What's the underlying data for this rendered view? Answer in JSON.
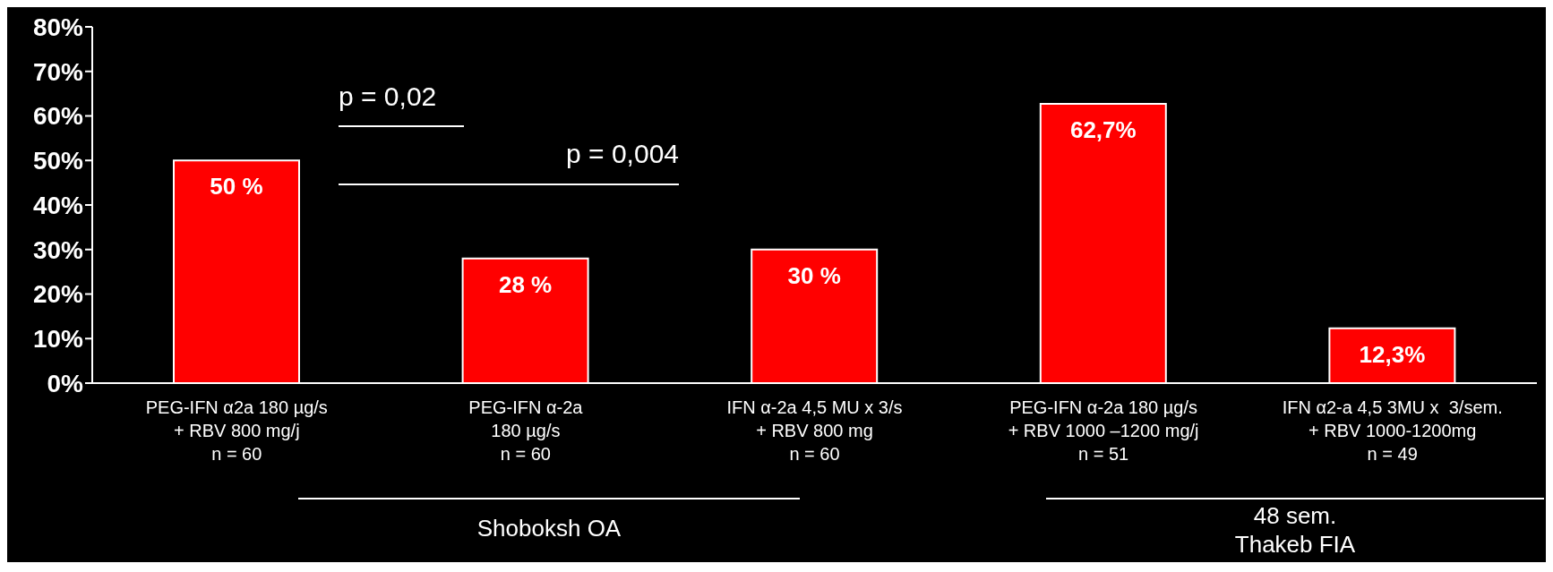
{
  "chart_data": {
    "type": "bar",
    "categories": [
      "PEG-IFN α2a 180 µg/s\n+ RBV 800 mg/j\nn = 60",
      "PEG-IFN α-2a\n180 µg/s\nn = 60",
      "IFN α-2a 4,5 MU x 3/s\n+ RBV 800 mg\nn = 60",
      "PEG-IFN α-2a 180 µg/s\n+ RBV 1000 –1200 mg/j\nn = 51",
      "IFN α2-a 4,5 3MU x  3/sem.\n+ RBV 1000-1200mg\nn = 49"
    ],
    "values": [
      50,
      28,
      30,
      62.7,
      12.3
    ],
    "value_labels": [
      "50 %",
      "28 %",
      "30 %",
      "62,7%",
      "12,3%"
    ],
    "color": "#ff0000",
    "ylim": [
      0,
      80
    ],
    "yticks": [
      {
        "value": 0,
        "label": "0%"
      },
      {
        "value": 10,
        "label": "10%"
      },
      {
        "value": 20,
        "label": "20%"
      },
      {
        "value": 30,
        "label": "30%"
      },
      {
        "value": 40,
        "label": "40%"
      },
      {
        "value": 50,
        "label": "50%"
      },
      {
        "value": 60,
        "label": "60%"
      },
      {
        "value": 70,
        "label": "70%"
      },
      {
        "value": 80,
        "label": "80%"
      }
    ],
    "grid": false,
    "legend": false,
    "annotations": [
      "p = 0,02",
      "p = 0,004",
      "Shoboksh OA",
      "48 sem.\nThakeb FIA"
    ]
  }
}
